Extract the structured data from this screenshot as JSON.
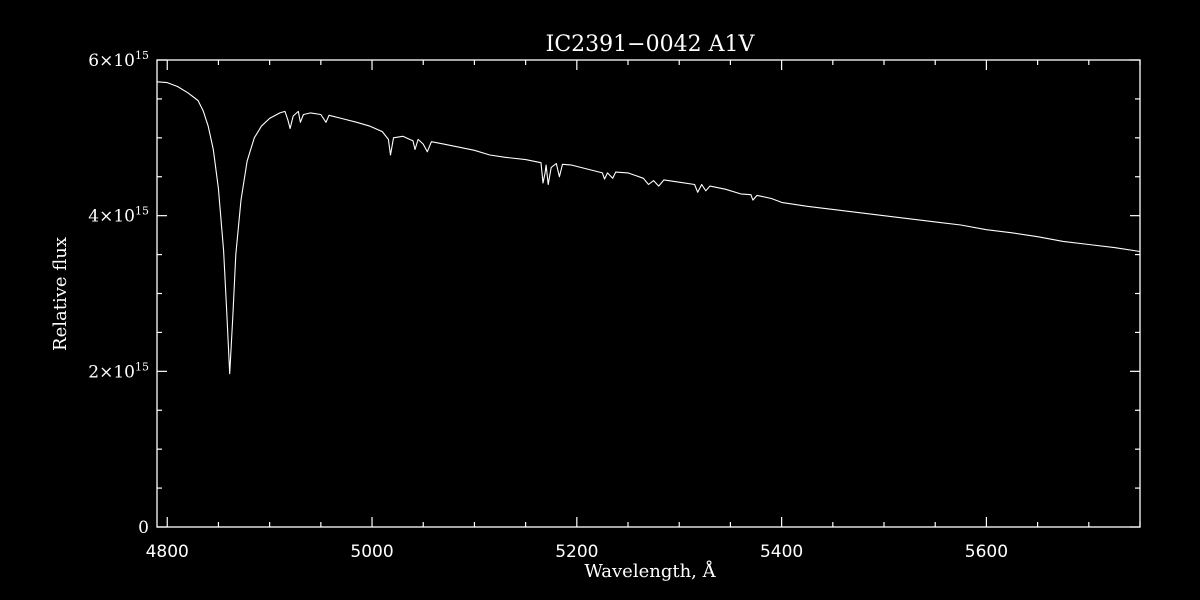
{
  "chart_data": {
    "type": "line",
    "title": "IC2391−0042  A1V",
    "xlabel": "Wavelength, Å",
    "ylabel": "Relative flux",
    "xlim": [
      4790,
      5750
    ],
    "ylim": [
      0,
      6000000000000000.0
    ],
    "grid": false,
    "legend": "none",
    "x_ticks": [
      {
        "value": 4800,
        "label": "4800"
      },
      {
        "value": 5000,
        "label": "5000"
      },
      {
        "value": 5200,
        "label": "5200"
      },
      {
        "value": 5400,
        "label": "5400"
      },
      {
        "value": 5600,
        "label": "5600"
      }
    ],
    "y_ticks": [
      {
        "value": 0,
        "label": "0"
      },
      {
        "value": 2000000000000000.0,
        "mantissa": "2×10",
        "exponent": "15"
      },
      {
        "value": 4000000000000000.0,
        "mantissa": "4×10",
        "exponent": "15"
      },
      {
        "value": 6000000000000000.0,
        "mantissa": "6×10",
        "exponent": "15"
      }
    ],
    "series": [
      {
        "color": "#ffffff",
        "points": [
          [
            4790,
            5720000000000000.0
          ],
          [
            4800,
            5710000000000000.0
          ],
          [
            4810,
            5660000000000000.0
          ],
          [
            4820,
            5580000000000000.0
          ],
          [
            4830,
            5480000000000000.0
          ],
          [
            4835,
            5350000000000000.0
          ],
          [
            4840,
            5150000000000000.0
          ],
          [
            4845,
            4850000000000000.0
          ],
          [
            4850,
            4350000000000000.0
          ],
          [
            4855,
            3550000000000000.0
          ],
          [
            4858,
            2800000000000000.0
          ],
          [
            4861,
            1970000000000000.0
          ],
          [
            4864,
            2700000000000000.0
          ],
          [
            4867,
            3500000000000000.0
          ],
          [
            4872,
            4200000000000000.0
          ],
          [
            4878,
            4700000000000000.0
          ],
          [
            4885,
            5000000000000000.0
          ],
          [
            4892,
            5150000000000000.0
          ],
          [
            4900,
            5250000000000000.0
          ],
          [
            4910,
            5320000000000000.0
          ],
          [
            4915,
            5340000000000000.0
          ],
          [
            4918,
            5220000000000000.0
          ],
          [
            4920,
            5120000000000000.0
          ],
          [
            4923,
            5280000000000000.0
          ],
          [
            4928,
            5340000000000000.0
          ],
          [
            4930,
            5200000000000000.0
          ],
          [
            4933,
            5300000000000000.0
          ],
          [
            4940,
            5320000000000000.0
          ],
          [
            4950,
            5300000000000000.0
          ],
          [
            4955,
            5200000000000000.0
          ],
          [
            4958,
            5290000000000000.0
          ],
          [
            4970,
            5250000000000000.0
          ],
          [
            4985,
            5200000000000000.0
          ],
          [
            4998,
            5150000000000000.0
          ],
          [
            5010,
            5080000000000000.0
          ],
          [
            5016,
            4980000000000000.0
          ],
          [
            5018,
            4780000000000000.0
          ],
          [
            5021,
            5000000000000000.0
          ],
          [
            5030,
            5020000000000000.0
          ],
          [
            5040,
            4960000000000000.0
          ],
          [
            5042,
            4850000000000000.0
          ],
          [
            5045,
            4980000000000000.0
          ],
          [
            5050,
            4920000000000000.0
          ],
          [
            5054,
            4820000000000000.0
          ],
          [
            5058,
            4950000000000000.0
          ],
          [
            5070,
            4920000000000000.0
          ],
          [
            5085,
            4880000000000000.0
          ],
          [
            5100,
            4840000000000000.0
          ],
          [
            5115,
            4780000000000000.0
          ],
          [
            5130,
            4750000000000000.0
          ],
          [
            5150,
            4720000000000000.0
          ],
          [
            5165,
            4680000000000000.0
          ],
          [
            5167,
            4420000000000000.0
          ],
          [
            5169,
            4550000000000000.0
          ],
          [
            5170,
            4650000000000000.0
          ],
          [
            5172,
            4400000000000000.0
          ],
          [
            5175,
            4620000000000000.0
          ],
          [
            5180,
            4670000000000000.0
          ],
          [
            5183,
            4500000000000000.0
          ],
          [
            5186,
            4660000000000000.0
          ],
          [
            5195,
            4650000000000000.0
          ],
          [
            5210,
            4600000000000000.0
          ],
          [
            5225,
            4550000000000000.0
          ],
          [
            5227,
            4470000000000000.0
          ],
          [
            5230,
            4550000000000000.0
          ],
          [
            5235,
            4480000000000000.0
          ],
          [
            5238,
            4560000000000000.0
          ],
          [
            5250,
            4550000000000000.0
          ],
          [
            5265,
            4480000000000000.0
          ],
          [
            5270,
            4400000000000000.0
          ],
          [
            5275,
            4450000000000000.0
          ],
          [
            5280,
            4380000000000000.0
          ],
          [
            5285,
            4460000000000000.0
          ],
          [
            5300,
            4430000000000000.0
          ],
          [
            5315,
            4400000000000000.0
          ],
          [
            5318,
            4300000000000000.0
          ],
          [
            5322,
            4400000000000000.0
          ],
          [
            5326,
            4320000000000000.0
          ],
          [
            5330,
            4380000000000000.0
          ],
          [
            5345,
            4340000000000000.0
          ],
          [
            5360,
            4280000000000000.0
          ],
          [
            5370,
            4270000000000000.0
          ],
          [
            5372,
            4200000000000000.0
          ],
          [
            5376,
            4260000000000000.0
          ],
          [
            5390,
            4220000000000000.0
          ],
          [
            5400,
            4170000000000000.0
          ],
          [
            5425,
            4120000000000000.0
          ],
          [
            5450,
            4080000000000000.0
          ],
          [
            5475,
            4040000000000000.0
          ],
          [
            5500,
            4000000000000000.0
          ],
          [
            5525,
            3960000000000000.0
          ],
          [
            5550,
            3920000000000000.0
          ],
          [
            5575,
            3880000000000000.0
          ],
          [
            5600,
            3820000000000000.0
          ],
          [
            5625,
            3780000000000000.0
          ],
          [
            5650,
            3730000000000000.0
          ],
          [
            5675,
            3670000000000000.0
          ],
          [
            5700,
            3630000000000000.0
          ],
          [
            5725,
            3590000000000000.0
          ],
          [
            5750,
            3540000000000000.0
          ]
        ]
      }
    ]
  }
}
